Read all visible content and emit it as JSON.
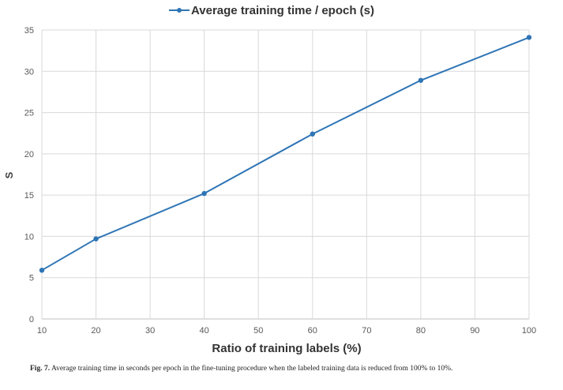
{
  "chart_data": {
    "type": "line",
    "title": "",
    "xlabel": "Ratio of training labels (%)",
    "ylabel": "S",
    "xlim": [
      10,
      100
    ],
    "ylim": [
      0,
      35
    ],
    "x_ticks": [
      10,
      20,
      30,
      40,
      50,
      60,
      70,
      80,
      90,
      100
    ],
    "y_ticks": [
      0,
      5,
      10,
      15,
      20,
      25,
      30,
      35
    ],
    "grid": true,
    "legend_position": "top-center",
    "series": [
      {
        "name": "Average training time / epoch (s)",
        "color": "#2E75B6",
        "marker": "circle",
        "points": [
          {
            "x": 10,
            "y": 5.9
          },
          {
            "x": 20,
            "y": 9.7
          },
          {
            "x": 40,
            "y": 15.2
          },
          {
            "x": 60,
            "y": 22.4
          },
          {
            "x": 80,
            "y": 28.9
          },
          {
            "x": 100,
            "y": 34.1
          }
        ]
      }
    ]
  },
  "caption": {
    "label": "Fig. 7.",
    "text": "Average training time in seconds per epoch in the fine-tuning procedure when the labeled training data is reduced from 100% to 10%."
  }
}
